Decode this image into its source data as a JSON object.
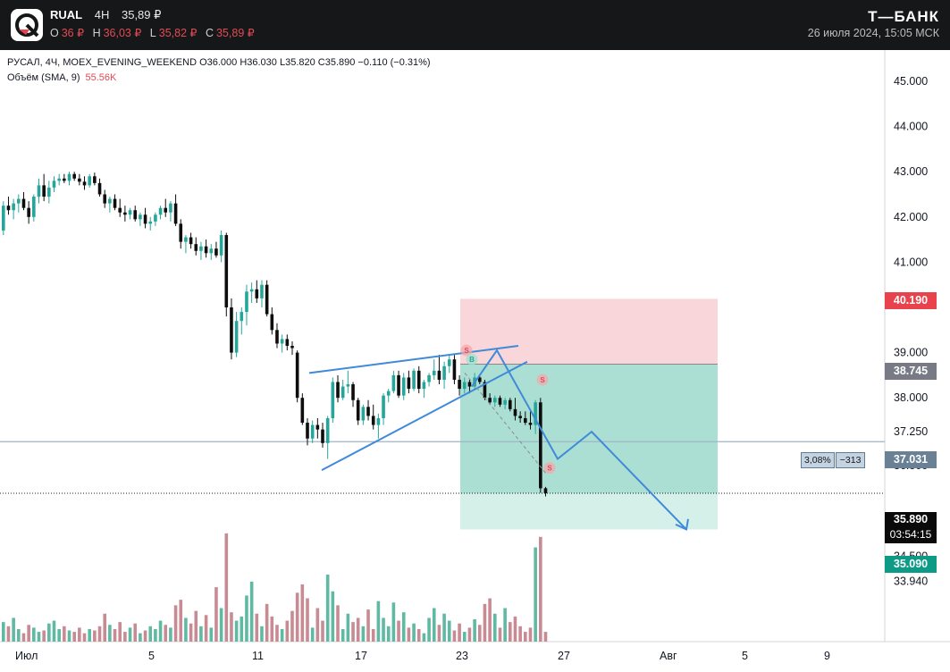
{
  "header": {
    "symbol": "RUAL",
    "timeframe": "4H",
    "last_price": "35,89 ₽",
    "ohlc": [
      {
        "key": "O",
        "value": "36 ₽"
      },
      {
        "key": "H",
        "value": "36,03 ₽"
      },
      {
        "key": "L",
        "value": "35,82 ₽"
      },
      {
        "key": "C",
        "value": "35,89 ₽"
      }
    ],
    "brand": "Т—БАНК",
    "datetime": "26 июля 2024, 15:05 МСК"
  },
  "legend": {
    "main": "РУСАЛ, 4Ч, MOEX_EVENING_WEEKEND  O36.000  H36.030  L35.820  C35.890  −0.110 (−0.31%)",
    "volume_label": "Объём (SMA, 9)",
    "volume_value": "55.56K"
  },
  "price_tags": {
    "stop": "40.190",
    "entry": "38.745",
    "hline": "37.031",
    "last": "35.890",
    "countdown": "03:54:15",
    "target": "35.090"
  },
  "ruler": {
    "pct": "3,08%",
    "value": "−313"
  },
  "colors": {
    "up": "#26a69a",
    "down": "#0d0d0d",
    "vol_up": "#60b9a2",
    "vol_down": "#c88b93",
    "line": "#3f8ad9",
    "stop_zone": "#f9d4d7",
    "profit_zone": "#a3dccf",
    "target_zone": "#d2efe8"
  },
  "chart_data": {
    "type": "candlestick",
    "x_tick_labels": [
      "Июл",
      "5",
      "11",
      "17",
      "23",
      "27",
      "Авг",
      "5",
      "9"
    ],
    "y_tick_labels": [
      "45.000",
      "44.000",
      "43.000",
      "42.000",
      "41.000",
      "39.000",
      "38.000",
      "37.250",
      "36.500",
      "34.500",
      "33.940"
    ],
    "ylim": [
      33.75,
      45.4
    ],
    "candles": [
      [
        41.7,
        42.35,
        41.6,
        42.25
      ],
      [
        42.25,
        42.45,
        42.05,
        42.15
      ],
      [
        42.15,
        42.4,
        41.95,
        42.3
      ],
      [
        42.3,
        42.5,
        42.1,
        42.4
      ],
      [
        42.4,
        42.55,
        42.15,
        42.2
      ],
      [
        42.2,
        42.35,
        41.85,
        42.0
      ],
      [
        42.0,
        42.5,
        41.9,
        42.45
      ],
      [
        42.45,
        42.85,
        42.3,
        42.7
      ],
      [
        42.7,
        42.95,
        42.35,
        42.45
      ],
      [
        42.45,
        42.8,
        42.3,
        42.65
      ],
      [
        42.65,
        42.9,
        42.55,
        42.8
      ],
      [
        42.8,
        42.95,
        42.7,
        42.85
      ],
      [
        42.85,
        42.95,
        42.75,
        42.8
      ],
      [
        42.8,
        43.0,
        42.7,
        42.95
      ],
      [
        42.95,
        43.0,
        42.8,
        42.85
      ],
      [
        42.85,
        42.95,
        42.7,
        42.78
      ],
      [
        42.78,
        42.9,
        42.6,
        42.7
      ],
      [
        42.7,
        42.95,
        42.65,
        42.9
      ],
      [
        42.9,
        42.98,
        42.7,
        42.75
      ],
      [
        42.75,
        42.85,
        42.45,
        42.5
      ],
      [
        42.5,
        42.6,
        42.2,
        42.3
      ],
      [
        42.3,
        42.45,
        42.1,
        42.4
      ],
      [
        42.4,
        42.5,
        42.15,
        42.2
      ],
      [
        42.2,
        42.4,
        42.0,
        42.1
      ],
      [
        42.1,
        42.25,
        41.9,
        42.05
      ],
      [
        42.05,
        42.2,
        41.95,
        42.15
      ],
      [
        42.15,
        42.25,
        41.9,
        41.95
      ],
      [
        41.95,
        42.1,
        41.8,
        42.05
      ],
      [
        42.05,
        42.2,
        41.75,
        41.85
      ],
      [
        41.85,
        42.0,
        41.7,
        41.9
      ],
      [
        41.9,
        42.1,
        41.8,
        42.05
      ],
      [
        42.05,
        42.25,
        41.95,
        42.2
      ],
      [
        42.2,
        42.4,
        42.0,
        42.1
      ],
      [
        42.1,
        42.35,
        41.9,
        42.3
      ],
      [
        42.3,
        42.5,
        41.8,
        41.85
      ],
      [
        41.85,
        41.95,
        41.3,
        41.45
      ],
      [
        41.45,
        41.6,
        41.2,
        41.55
      ],
      [
        41.55,
        41.65,
        41.3,
        41.4
      ],
      [
        41.4,
        41.55,
        41.15,
        41.25
      ],
      [
        41.25,
        41.45,
        41.05,
        41.35
      ],
      [
        41.35,
        41.5,
        41.1,
        41.2
      ],
      [
        41.2,
        41.4,
        41.05,
        41.3
      ],
      [
        41.3,
        41.45,
        41.1,
        41.15
      ],
      [
        41.15,
        41.7,
        41.0,
        41.6
      ],
      [
        41.6,
        41.65,
        39.8,
        40.0
      ],
      [
        40.0,
        40.2,
        38.85,
        39.0
      ],
      [
        39.0,
        39.9,
        38.9,
        39.7
      ],
      [
        39.7,
        40.0,
        39.4,
        39.9
      ],
      [
        39.9,
        40.5,
        39.6,
        40.35
      ],
      [
        40.35,
        40.55,
        40.1,
        40.4
      ],
      [
        40.4,
        40.6,
        40.1,
        40.2
      ],
      [
        40.2,
        40.6,
        40.0,
        40.5
      ],
      [
        40.5,
        40.6,
        39.8,
        39.85
      ],
      [
        39.85,
        40.0,
        39.4,
        39.5
      ],
      [
        39.5,
        39.65,
        39.1,
        39.2
      ],
      [
        39.2,
        39.4,
        39.0,
        39.3
      ],
      [
        39.3,
        39.4,
        39.05,
        39.15
      ],
      [
        39.15,
        39.25,
        38.95,
        39.1
      ],
      [
        39.0,
        39.05,
        37.9,
        38.0
      ],
      [
        38.0,
        38.1,
        37.4,
        37.45
      ],
      [
        37.45,
        37.55,
        36.95,
        37.1
      ],
      [
        37.1,
        37.5,
        37.0,
        37.4
      ],
      [
        37.4,
        37.55,
        37.1,
        37.3
      ],
      [
        37.3,
        37.45,
        36.9,
        37.0
      ],
      [
        37.0,
        37.6,
        36.65,
        37.55
      ],
      [
        37.55,
        38.45,
        37.45,
        38.35
      ],
      [
        38.35,
        38.5,
        37.9,
        38.0
      ],
      [
        38.0,
        38.4,
        37.95,
        38.25
      ],
      [
        38.25,
        38.6,
        38.1,
        38.3
      ],
      [
        38.3,
        38.35,
        37.8,
        37.95
      ],
      [
        37.95,
        38.0,
        37.4,
        37.5
      ],
      [
        37.5,
        37.85,
        37.4,
        37.8
      ],
      [
        37.8,
        37.95,
        37.5,
        37.6
      ],
      [
        37.6,
        37.85,
        37.3,
        37.4
      ],
      [
        37.4,
        37.65,
        37.1,
        37.55
      ],
      [
        37.55,
        38.1,
        37.4,
        38.05
      ],
      [
        38.05,
        38.2,
        37.9,
        38.15
      ],
      [
        38.15,
        38.6,
        38.1,
        38.5
      ],
      [
        38.5,
        38.6,
        38.0,
        38.05
      ],
      [
        38.05,
        38.55,
        37.95,
        38.45
      ],
      [
        38.45,
        38.6,
        38.1,
        38.2
      ],
      [
        38.2,
        38.65,
        38.15,
        38.6
      ],
      [
        38.6,
        38.7,
        38.1,
        38.2
      ],
      [
        38.2,
        38.4,
        38.0,
        38.35
      ],
      [
        38.35,
        38.55,
        38.25,
        38.5
      ],
      [
        38.5,
        38.85,
        38.4,
        38.6
      ],
      [
        38.6,
        38.95,
        38.3,
        38.4
      ],
      [
        38.4,
        38.8,
        38.2,
        38.7
      ],
      [
        38.7,
        38.95,
        38.55,
        38.85
      ],
      [
        38.85,
        38.95,
        38.3,
        38.4
      ],
      [
        38.4,
        38.5,
        38.05,
        38.2
      ],
      [
        38.2,
        38.45,
        38.1,
        38.35
      ],
      [
        38.35,
        38.4,
        38.1,
        38.25
      ],
      [
        38.25,
        38.55,
        38.2,
        38.45
      ],
      [
        38.45,
        38.5,
        38.3,
        38.35
      ],
      [
        38.35,
        38.4,
        37.95,
        38.0
      ],
      [
        38.0,
        38.1,
        37.85,
        37.9
      ],
      [
        37.9,
        38.05,
        37.8,
        38.0
      ],
      [
        38.0,
        38.05,
        37.8,
        37.85
      ],
      [
        37.85,
        38.0,
        37.75,
        37.95
      ],
      [
        37.95,
        38.0,
        37.7,
        37.75
      ],
      [
        37.75,
        38.0,
        37.5,
        37.6
      ],
      [
        37.6,
        37.7,
        37.45,
        37.55
      ],
      [
        37.55,
        37.7,
        37.4,
        37.45
      ],
      [
        37.45,
        37.7,
        37.3,
        37.4
      ],
      [
        37.4,
        37.95,
        37.2,
        37.9
      ],
      [
        37.9,
        38.0,
        35.9,
        36.0
      ],
      [
        36.0,
        36.03,
        35.82,
        35.89
      ]
    ],
    "volumes_k": [
      28,
      22,
      34,
      18,
      12,
      24,
      20,
      14,
      16,
      26,
      30,
      18,
      22,
      16,
      14,
      20,
      12,
      18,
      16,
      22,
      40,
      24,
      18,
      28,
      14,
      20,
      26,
      12,
      16,
      22,
      18,
      30,
      24,
      20,
      52,
      60,
      34,
      26,
      44,
      22,
      38,
      20,
      78,
      48,
      155,
      42,
      30,
      36,
      66,
      86,
      40,
      22,
      54,
      36,
      24,
      18,
      30,
      44,
      70,
      82,
      62,
      20,
      48,
      30,
      96,
      72,
      52,
      18,
      40,
      28,
      34,
      22,
      46,
      18,
      58,
      34,
      22,
      56,
      30,
      42,
      20,
      26,
      18,
      12,
      34,
      48,
      24,
      40,
      30,
      16,
      26,
      14,
      20,
      32,
      24,
      54,
      62,
      40,
      20,
      48,
      28,
      36,
      22,
      14,
      20,
      135,
      150,
      14
    ],
    "entry": 38.745,
    "stop": 40.19,
    "target": 35.09,
    "hline": 37.031
  }
}
